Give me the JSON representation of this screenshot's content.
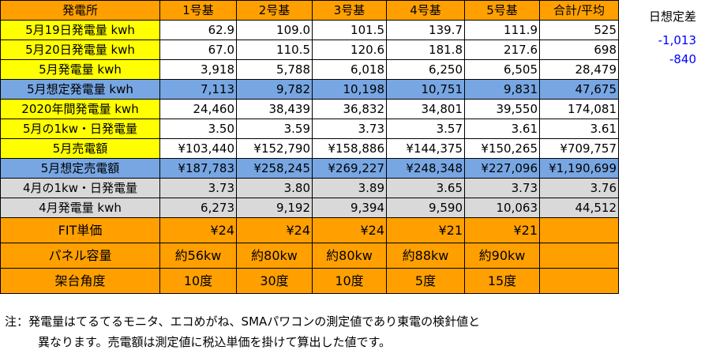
{
  "colors": {
    "orange": "#ffa000",
    "yellow": "#ffff00",
    "blue": "#77a6e3",
    "gray": "#d9d9d9",
    "white": "#ffffff",
    "negative": "#0000ff"
  },
  "header": [
    "発電所",
    "1号基",
    "2号基",
    "3号基",
    "4号基",
    "5号基",
    "合計/平均"
  ],
  "rows": [
    {
      "label": "5月19日発電量 kwh",
      "label_bg": "yellow",
      "bg": "white",
      "align": "num",
      "cells": [
        "62.9",
        "109.0",
        "101.5",
        "139.7",
        "111.9",
        "525"
      ]
    },
    {
      "label": "5月20日発電量 kwh",
      "label_bg": "yellow",
      "bg": "white",
      "align": "num",
      "cells": [
        "67.0",
        "110.5",
        "120.6",
        "181.8",
        "217.6",
        "698"
      ]
    },
    {
      "label": "5月発電量 kwh",
      "label_bg": "yellow",
      "bg": "white",
      "align": "num",
      "cells": [
        "3,918",
        "5,788",
        "6,018",
        "6,250",
        "6,505",
        "28,479"
      ]
    },
    {
      "label": "5月想定発電量 kwh",
      "label_bg": "blue",
      "bg": "blue",
      "align": "num",
      "cells": [
        "7,113",
        "9,782",
        "10,198",
        "10,751",
        "9,831",
        "47,675"
      ]
    },
    {
      "label": "2020年間発電量 kwh",
      "label_bg": "yellow",
      "bg": "white",
      "align": "num",
      "cells": [
        "24,460",
        "38,439",
        "36,832",
        "34,801",
        "39,550",
        "174,081"
      ]
    },
    {
      "label": "5月の1kw・日発電量",
      "label_bg": "yellow",
      "bg": "white",
      "align": "num",
      "cells": [
        "3.50",
        "3.59",
        "3.73",
        "3.57",
        "3.61",
        "3.61"
      ]
    },
    {
      "label": "5月売電額",
      "label_bg": "yellow",
      "bg": "white",
      "align": "num",
      "cells": [
        "¥103,440",
        "¥152,790",
        "¥158,886",
        "¥144,375",
        "¥150,265",
        "¥709,757"
      ]
    },
    {
      "label": "5月想定売電額",
      "label_bg": "blue",
      "bg": "blue",
      "align": "num",
      "cells": [
        "¥187,783",
        "¥258,245",
        "¥269,227",
        "¥248,348",
        "¥227,096",
        "¥1,190,699"
      ]
    },
    {
      "label": "4月の1kw・日発電量",
      "label_bg": "gray",
      "bg": "gray",
      "align": "num",
      "cells": [
        "3.73",
        "3.80",
        "3.89",
        "3.65",
        "3.73",
        "3.76"
      ]
    },
    {
      "label": "4月発電量 kwh",
      "label_bg": "gray",
      "bg": "gray",
      "align": "num",
      "cells": [
        "6,273",
        "9,192",
        "9,394",
        "9,590",
        "10,063",
        "44,512"
      ]
    },
    {
      "label": "FIT単価",
      "label_bg": "orange",
      "bg": "orange",
      "align": "num",
      "big": true,
      "cells": [
        "¥24",
        "¥24",
        "¥24",
        "¥21",
        "¥21",
        ""
      ]
    },
    {
      "label": "パネル容量",
      "label_bg": "orange",
      "bg": "orange",
      "align": "ctr",
      "big": true,
      "cells": [
        "約56kw",
        "約80kw",
        "約80kw",
        "約88kw",
        "約90kw",
        ""
      ]
    },
    {
      "label": "架台角度",
      "label_bg": "orange",
      "bg": "orange",
      "align": "ctr",
      "big": true,
      "cells": [
        "10度",
        "30度",
        "10度",
        "5度",
        "15度",
        ""
      ]
    }
  ],
  "side_panel": {
    "title": "日想定差",
    "values": [
      "-1,013",
      "-840"
    ]
  },
  "notes": [
    "注：発電量はてるてるモニタ、エコめがね、SMAパワコンの測定値であり東電の検針値と",
    "異なります。売電額は測定値に税込単価を掛けて算出した値です。"
  ]
}
